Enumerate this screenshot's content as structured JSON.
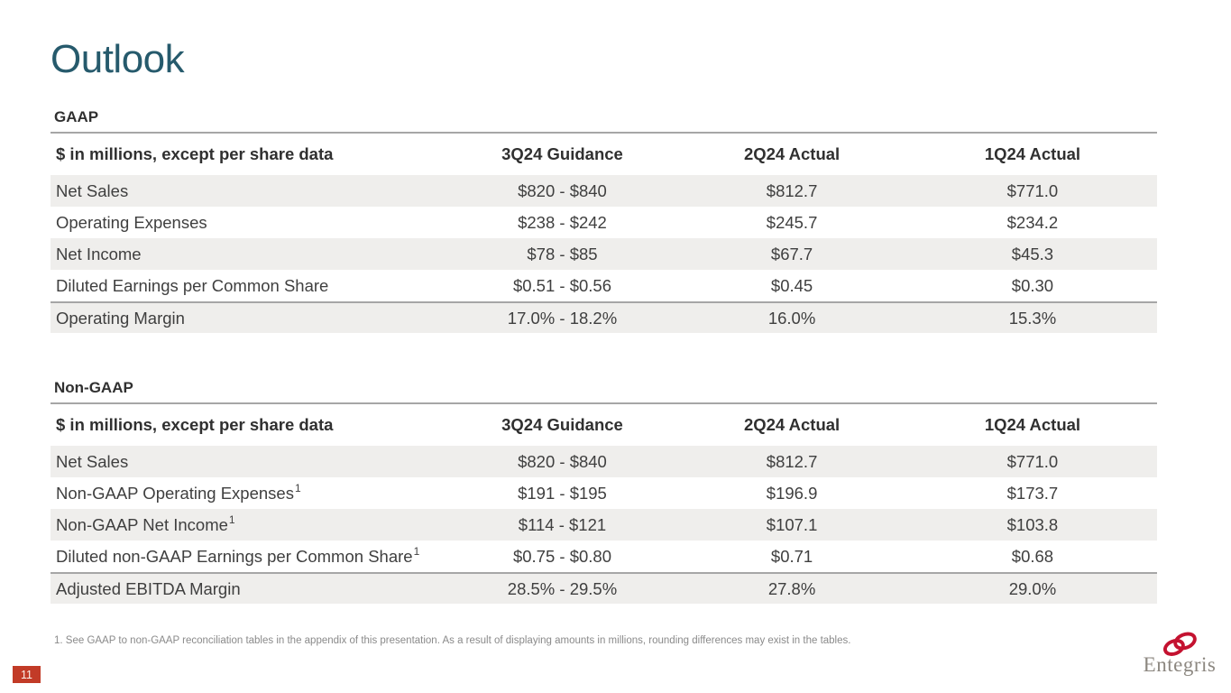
{
  "slide": {
    "title": "Outlook"
  },
  "tables": [
    {
      "id": "gaap",
      "section_label": "GAAP",
      "headers": [
        "$ in millions, except per share data",
        "3Q24 Guidance",
        "2Q24 Actual",
        "1Q24 Actual"
      ],
      "rows": [
        {
          "label": "Net Sales",
          "values": [
            "$820 - $840",
            "$812.7",
            "$771.0"
          ],
          "striped": true
        },
        {
          "label": "Operating Expenses",
          "values": [
            "$238 - $242",
            "$245.7",
            "$234.2"
          ],
          "striped": false
        },
        {
          "label": "Net Income",
          "values": [
            "$78 - $85",
            "$67.7",
            "$45.3"
          ],
          "striped": true
        },
        {
          "label": "Diluted Earnings per Common Share",
          "values": [
            "$0.51 - $0.56",
            "$0.45",
            "$0.30"
          ],
          "striped": false
        },
        {
          "label": "Operating Margin",
          "values": [
            "17.0% - 18.2%",
            "16.0%",
            "15.3%"
          ],
          "striped": true,
          "top_border": true
        }
      ]
    },
    {
      "id": "non-gaap",
      "section_label": "Non-GAAP",
      "headers": [
        "$ in millions, except per share data",
        "3Q24 Guidance",
        "2Q24 Actual",
        "1Q24 Actual"
      ],
      "rows": [
        {
          "label": "Net Sales",
          "values": [
            "$820 - $840",
            "$812.7",
            "$771.0"
          ],
          "striped": true
        },
        {
          "label": "Non-GAAP Operating Expenses",
          "sup": "1",
          "values": [
            "$191 - $195",
            "$196.9",
            "$173.7"
          ],
          "striped": false
        },
        {
          "label": "Non-GAAP Net Income",
          "sup": "1",
          "values": [
            "$114 - $121",
            "$107.1",
            "$103.8"
          ],
          "striped": true
        },
        {
          "label": "Diluted non-GAAP Earnings per Common Share",
          "sup": "1",
          "values": [
            "$0.75 - $0.80",
            "$0.71",
            "$0.68"
          ],
          "striped": false
        },
        {
          "label": "Adjusted EBITDA Margin",
          "values": [
            "28.5% - 29.5%",
            "27.8%",
            "29.0%"
          ],
          "striped": true,
          "top_border": true
        }
      ]
    }
  ],
  "footnote": "1. See GAAP to non-GAAP reconciliation tables in the appendix of this presentation. As a result of displaying amounts in millions, rounding differences may exist in the tables.",
  "page_number": "11",
  "logo": {
    "text": "Entegris"
  },
  "colors": {
    "title": "#265A6C",
    "section_rule": "#A6A6A6",
    "row_stripe": "#EFEEEC",
    "body_text": "#3F3F3F",
    "header_text": "#303030",
    "footnote_text": "#8A8A8A",
    "page_badge_bg": "#C23B27",
    "page_badge_text": "#FBF3EC",
    "logo_red": "#C41230",
    "logo_gray": "#8C8780"
  }
}
